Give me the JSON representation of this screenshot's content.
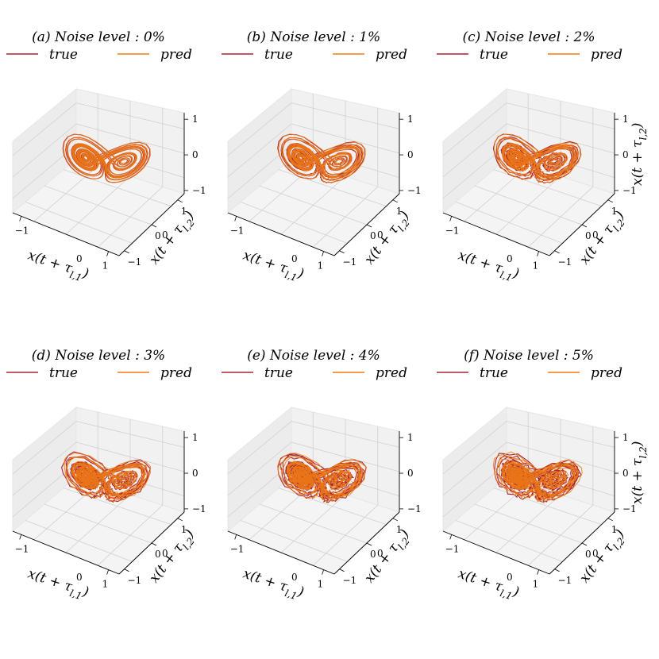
{
  "colors": {
    "true": "#a82434",
    "pred": "#f07d14",
    "pane_back": "#f1f1f1",
    "pane_side": "#ececec",
    "pane_floor": "#f4f4f4"
  },
  "chart_data": [
    {
      "type": "line3d",
      "title": "(a) Noise level : 0%",
      "noise": 0,
      "legend": [
        "true",
        "pred"
      ],
      "xlabel": "x(t + τ_{l,1}^0)",
      "ylabel": "x(t + τ_{l,2}^0)",
      "zlabel": "",
      "xticks": [
        "−1",
        "1"
      ],
      "yticks": [
        "−1",
        "0",
        "1"
      ],
      "zticks": [
        "−1",
        "0",
        "1"
      ],
      "xlim": [
        -1,
        1
      ],
      "ylim": [
        -1,
        1
      ],
      "zlim": [
        -1,
        1
      ]
    },
    {
      "type": "line3d",
      "title": "(b) Noise level : 1%",
      "noise": 1,
      "legend": [
        "true",
        "pred"
      ],
      "xlabel": "x(t + τ_{l,1}^0)",
      "ylabel": "x(t + τ_{l,2}^0)",
      "zlabel": "",
      "xticks": [
        "−1",
        "1"
      ],
      "yticks": [
        "−1",
        "0",
        "1"
      ],
      "zticks": [
        "−1",
        "0",
        "1"
      ],
      "xlim": [
        -1,
        1
      ],
      "ylim": [
        -1,
        1
      ],
      "zlim": [
        -1,
        1
      ]
    },
    {
      "type": "line3d",
      "title": "(c) Noise level : 2%",
      "noise": 2,
      "legend": [
        "true",
        "pred"
      ],
      "xlabel": "x(t + τ_{l,1}^0)",
      "ylabel": "x(t + τ_{l,2}^0)",
      "zlabel": "x(t + τ_{l,2})",
      "xticks": [
        "−1",
        "1"
      ],
      "yticks": [
        "−1",
        "0",
        "1"
      ],
      "zticks": [
        "−1",
        "0",
        "1"
      ],
      "xlim": [
        -1,
        1
      ],
      "ylim": [
        -1,
        1
      ],
      "zlim": [
        -1,
        1
      ]
    },
    {
      "type": "line3d",
      "title": "(d) Noise level : 3%",
      "noise": 3,
      "legend": [
        "true",
        "pred"
      ],
      "xlabel": "x(t + τ_{l,1}^0)",
      "ylabel": "x(t + τ_{l,2}^0)",
      "zlabel": "",
      "xticks": [
        "−1",
        "1"
      ],
      "yticks": [
        "−1",
        "0",
        "1"
      ],
      "zticks": [
        "−1",
        "0",
        "1"
      ],
      "xlim": [
        -1,
        1
      ],
      "ylim": [
        -1,
        1
      ],
      "zlim": [
        -1,
        1
      ]
    },
    {
      "type": "line3d",
      "title": "(e) Noise level : 4%",
      "noise": 4,
      "legend": [
        "true",
        "pred"
      ],
      "xlabel": "x(t + τ_{l,1}^0)",
      "ylabel": "x(t + τ_{l,2}^0)",
      "zlabel": "",
      "xticks": [
        "−1",
        "1"
      ],
      "yticks": [
        "−1",
        "0",
        "1"
      ],
      "zticks": [
        "−1",
        "0",
        "1"
      ],
      "xlim": [
        -1,
        1
      ],
      "ylim": [
        -1,
        1
      ],
      "zlim": [
        -1,
        1
      ]
    },
    {
      "type": "line3d",
      "title": "(f) Noise level : 5%",
      "noise": 5,
      "legend": [
        "true",
        "pred"
      ],
      "xlabel": "x(t + τ_{l,1}^0)",
      "ylabel": "x(t + τ_{l,2}^0)",
      "zlabel": "x(t + τ_{l,2})",
      "xticks": [
        "−1",
        "1"
      ],
      "yticks": [
        "−1",
        "0",
        "1"
      ],
      "zticks": [
        "−1",
        "0",
        "1"
      ],
      "xlim": [
        -1,
        1
      ],
      "ylim": [
        -1,
        1
      ],
      "zlim": [
        -1,
        1
      ]
    }
  ]
}
